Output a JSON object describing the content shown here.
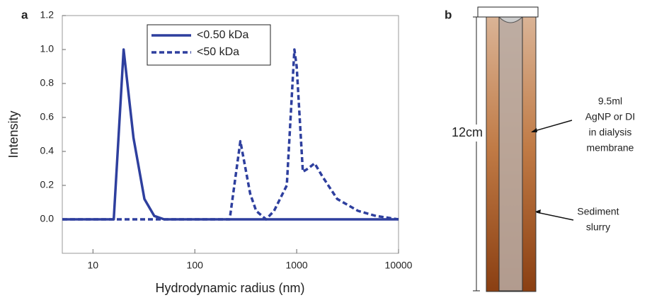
{
  "chart_data": {
    "type": "line",
    "panel_label": "a",
    "x_label": "Hydrodynamic radius (nm)",
    "y_label": "Intensity",
    "x_scale": "log",
    "xlim": [
      5,
      10000
    ],
    "xticks": [
      10,
      100,
      1000,
      10000
    ],
    "ylim": [
      -0.2,
      1.2
    ],
    "yticks": [
      {
        "value": 0,
        "label": "0.0"
      },
      0.2,
      0.4,
      0.6,
      0.8,
      {
        "value": 1,
        "label": "1.0"
      },
      1.2
    ],
    "legend": "upper center",
    "series": [
      {
        "name": "<0.50 kDa",
        "color": "#2e3f9e",
        "style": "solid",
        "x": [
          5,
          16,
          20,
          25,
          32,
          40,
          50,
          10000
        ],
        "values": [
          0,
          0,
          1.0,
          0.48,
          0.12,
          0.02,
          0,
          0
        ]
      },
      {
        "name": "<50 kDa",
        "color": "#2e3f9e",
        "style": "dashed",
        "x": [
          5,
          220,
          280,
          350,
          400,
          500,
          600,
          800,
          950,
          1000,
          1150,
          1300,
          1500,
          1800,
          2500,
          4000,
          6000,
          10000
        ],
        "values": [
          0,
          0,
          0.46,
          0.15,
          0.05,
          0,
          0.05,
          0.2,
          1.0,
          0.9,
          0.28,
          0.3,
          0.33,
          0.25,
          0.12,
          0.05,
          0.02,
          0
        ]
      }
    ]
  },
  "diagram": {
    "panel_label": "b",
    "height_label": "12cm",
    "membrane_label": [
      "9.5ml",
      "AgNP or DI",
      "in dialysis",
      "membrane"
    ],
    "sediment_label": [
      "Sediment",
      "slurry"
    ]
  }
}
